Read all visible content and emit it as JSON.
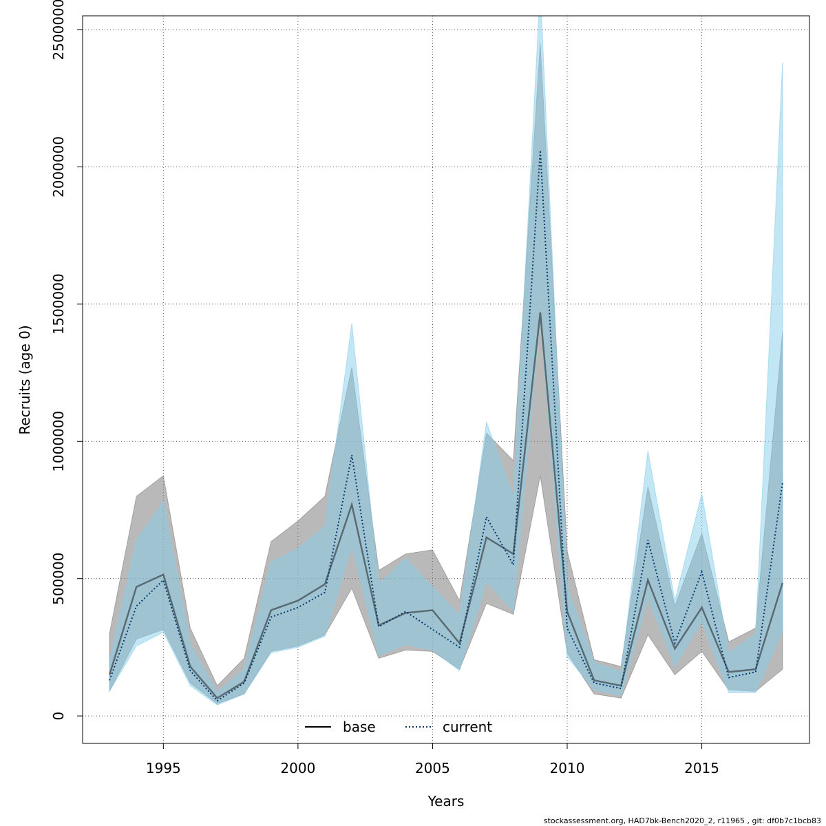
{
  "chart_data": {
    "type": "area",
    "xlabel": "Years",
    "ylabel": "Recruits (age 0)",
    "xlim": [
      1992,
      2019
    ],
    "ylim": [
      -100000,
      2550000
    ],
    "x_ticks": [
      1995,
      2000,
      2005,
      2010,
      2015
    ],
    "y_ticks": [
      0,
      500000,
      1000000,
      1500000,
      2000000,
      2500000
    ],
    "grid": true,
    "legend_position": "bottom-center",
    "x": [
      1993,
      1994,
      1995,
      1996,
      1997,
      1998,
      1999,
      2000,
      2001,
      2002,
      2003,
      2004,
      2005,
      2006,
      2007,
      2008,
      2009,
      2010,
      2011,
      2012,
      2013,
      2014,
      2015,
      2016,
      2017,
      2018
    ],
    "series": [
      {
        "name": "base",
        "line_style": "solid",
        "line_color": "#000000",
        "band_color": "#808080",
        "values": [
          150000,
          470000,
          515000,
          180000,
          65000,
          125000,
          385000,
          420000,
          480000,
          770000,
          330000,
          375000,
          385000,
          265000,
          650000,
          590000,
          1470000,
          380000,
          130000,
          110000,
          495000,
          245000,
          395000,
          160000,
          170000,
          485000
        ],
        "lower": [
          90000,
          280000,
          315000,
          120000,
          45000,
          80000,
          235000,
          255000,
          295000,
          465000,
          210000,
          240000,
          235000,
          170000,
          410000,
          370000,
          875000,
          230000,
          80000,
          65000,
          295000,
          150000,
          235000,
          95000,
          90000,
          170000
        ],
        "upper": [
          300000,
          800000,
          875000,
          320000,
          110000,
          210000,
          635000,
          710000,
          800000,
          1270000,
          530000,
          590000,
          605000,
          420000,
          1030000,
          930000,
          2450000,
          600000,
          205000,
          180000,
          835000,
          400000,
          665000,
          270000,
          320000,
          1400000
        ]
      },
      {
        "name": "current",
        "line_style": "dotted",
        "line_color": "#003a6e",
        "band_color": "#87ceeb",
        "values": [
          130000,
          400000,
          495000,
          165000,
          55000,
          120000,
          360000,
          395000,
          450000,
          950000,
          325000,
          380000,
          315000,
          250000,
          725000,
          550000,
          2060000,
          320000,
          120000,
          100000,
          640000,
          265000,
          525000,
          140000,
          160000,
          850000
        ],
        "lower": [
          90000,
          255000,
          305000,
          110000,
          40000,
          80000,
          230000,
          250000,
          290000,
          620000,
          220000,
          260000,
          240000,
          165000,
          490000,
          380000,
          1460000,
          215000,
          95000,
          75000,
          430000,
          180000,
          345000,
          85000,
          85000,
          310000
        ],
        "upper": [
          200000,
          640000,
          780000,
          260000,
          85000,
          170000,
          560000,
          610000,
          690000,
          1430000,
          480000,
          575000,
          470000,
          365000,
          1070000,
          800000,
          2650000,
          470000,
          195000,
          160000,
          965000,
          420000,
          810000,
          230000,
          300000,
          2380000
        ]
      }
    ],
    "footer": "stockassessment.org, HAD7bk-Bench2020_2, r11965 , git: df0b7c1bcb83"
  }
}
